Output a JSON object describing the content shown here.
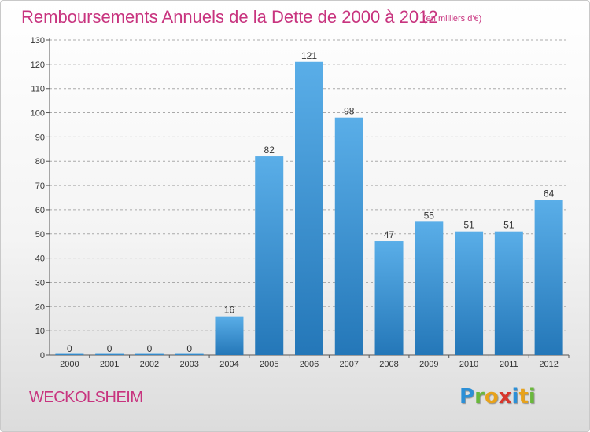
{
  "header": {
    "title": "Remboursements Annuels de la Dette de 2000 à 2012",
    "subtitle": "(en milliers d'€)"
  },
  "footer": {
    "commune": "WECKOLSHEIM",
    "logo_text": "Proxiti"
  },
  "colors": {
    "title": "#c8347f",
    "bar_top": "#5aaee8",
    "bar_bottom": "#2477b8",
    "grid": "#aaaaaa",
    "text": "#333333"
  },
  "chart_data": {
    "type": "bar",
    "categories": [
      "2000",
      "2001",
      "2002",
      "2003",
      "2004",
      "2005",
      "2006",
      "2007",
      "2008",
      "2009",
      "2010",
      "2011",
      "2012"
    ],
    "values": [
      0,
      0,
      0,
      0,
      16,
      82,
      121,
      98,
      47,
      55,
      51,
      51,
      64
    ],
    "data_labels": [
      "0",
      "0",
      "0",
      "0",
      "16",
      "82",
      "121",
      "98",
      "47",
      "55",
      "51",
      "51",
      "64"
    ],
    "title": "Remboursements Annuels de la Dette de 2000 à 2012",
    "subtitle": "(en milliers d'€)",
    "xlabel": "",
    "ylabel": "",
    "ylim": [
      0,
      130
    ],
    "yticks": [
      0,
      10,
      20,
      30,
      40,
      50,
      60,
      70,
      80,
      90,
      100,
      110,
      120,
      130
    ],
    "grid": "horizontal-dashed"
  }
}
